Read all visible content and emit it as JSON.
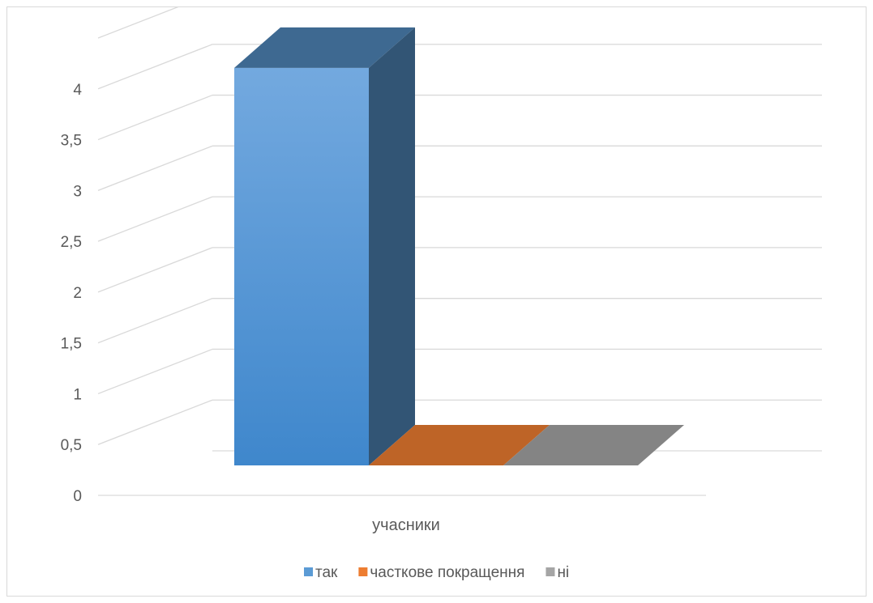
{
  "chart_data": {
    "type": "bar",
    "categories": [
      "учасники"
    ],
    "series": [
      {
        "name": "так",
        "values": [
          4
        ],
        "color": "#5B9BD5"
      },
      {
        "name": "часткове покращення",
        "values": [
          0
        ],
        "color": "#ED7D31"
      },
      {
        "name": "ні",
        "values": [
          0
        ],
        "color": "#A5A5A5"
      }
    ],
    "y_ticks": [
      "0",
      "0,5",
      "1",
      "1,5",
      "2",
      "2,5",
      "3",
      "3,5",
      "4"
    ],
    "ylim": [
      0,
      4.5
    ],
    "grid": true,
    "legend": "bottom",
    "style": "3d-column"
  }
}
